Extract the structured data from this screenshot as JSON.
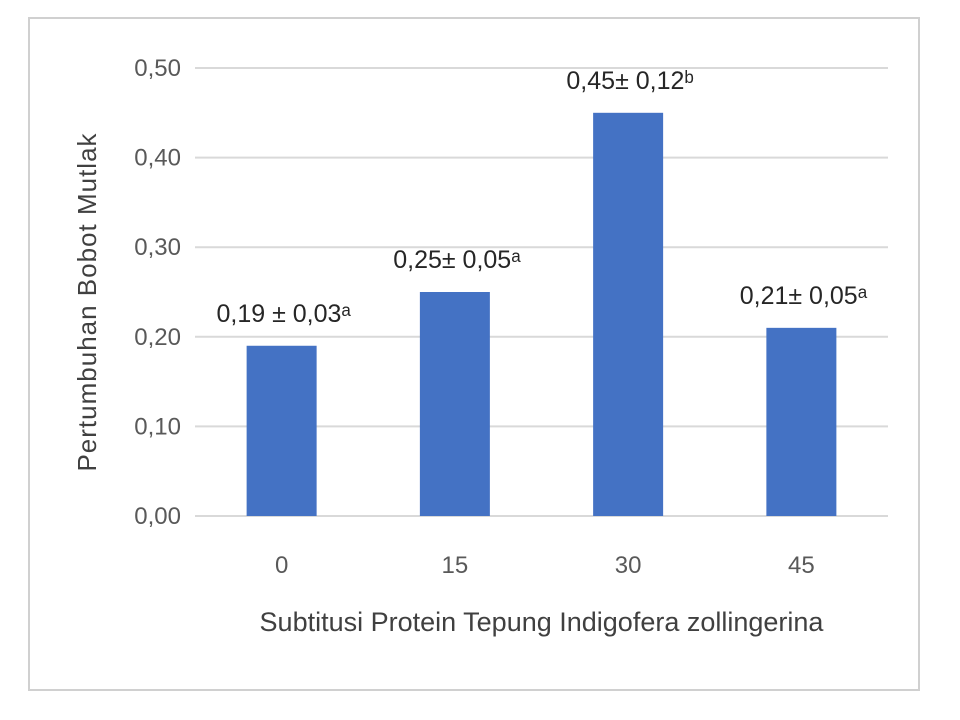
{
  "chart_data": {
    "type": "bar",
    "categories": [
      "0",
      "15",
      "30",
      "45"
    ],
    "values": [
      0.19,
      0.25,
      0.45,
      0.21
    ],
    "data_labels": [
      "0,19 ± 0,03ᵃ",
      "0,25± 0,05ᵃ",
      "0,45± 0,12ᵇ",
      "0,21± 0,05ᵃ"
    ],
    "title": "",
    "xlabel": "Subtitusi Protein Tepung Indigofera zollingerina",
    "ylabel": "Pertumbuhan Bobot Mutlak",
    "ylim": [
      0,
      0.5
    ],
    "yticks": [
      "0,00",
      "0,10",
      "0,20",
      "0,30",
      "0,40",
      "0,50"
    ],
    "grid": true,
    "bar_color": "#4472c4",
    "grid_color": "#d9d9d9"
  }
}
